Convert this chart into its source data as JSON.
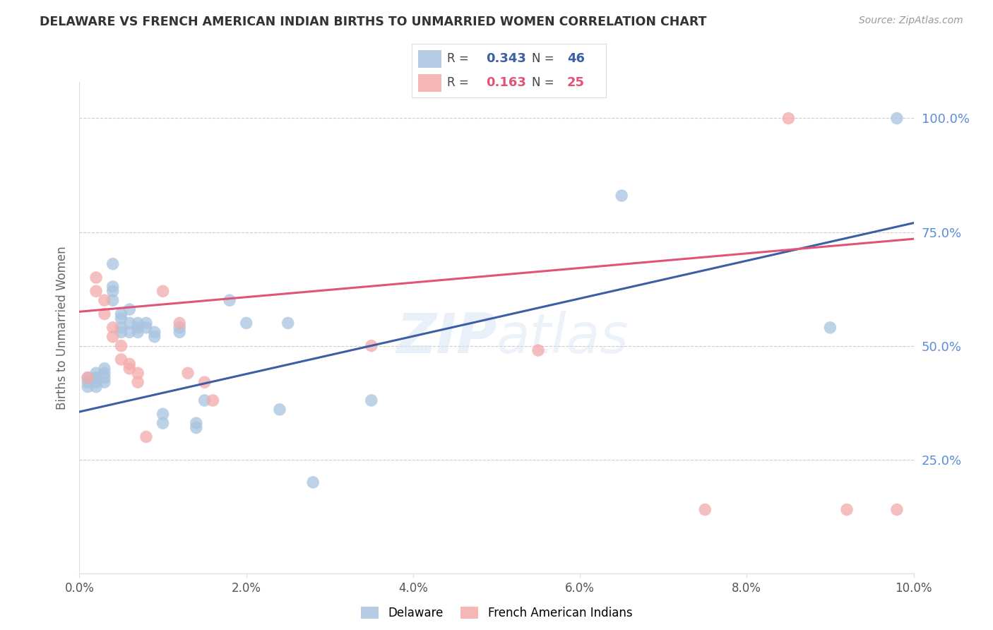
{
  "title": "DELAWARE VS FRENCH AMERICAN INDIAN BIRTHS TO UNMARRIED WOMEN CORRELATION CHART",
  "source": "Source: ZipAtlas.com",
  "ylabel": "Births to Unmarried Women",
  "watermark": "ZIPatlas",
  "legend_blue_r": "0.343",
  "legend_blue_n": "46",
  "legend_pink_r": "0.163",
  "legend_pink_n": "25",
  "legend_blue_label": "Delaware",
  "legend_pink_label": "French American Indians",
  "ytick_labels": [
    "100.0%",
    "75.0%",
    "50.0%",
    "25.0%"
  ],
  "ytick_values": [
    1.0,
    0.75,
    0.5,
    0.25
  ],
  "xmin": 0.0,
  "xmax": 0.1,
  "ymin": 0.0,
  "ymax": 1.08,
  "blue_scatter_x": [
    0.001,
    0.001,
    0.001,
    0.002,
    0.002,
    0.002,
    0.002,
    0.002,
    0.003,
    0.003,
    0.003,
    0.003,
    0.004,
    0.004,
    0.004,
    0.004,
    0.005,
    0.005,
    0.005,
    0.005,
    0.006,
    0.006,
    0.006,
    0.007,
    0.007,
    0.007,
    0.008,
    0.008,
    0.009,
    0.009,
    0.01,
    0.01,
    0.012,
    0.012,
    0.014,
    0.014,
    0.015,
    0.018,
    0.02,
    0.024,
    0.025,
    0.028,
    0.035,
    0.065,
    0.09,
    0.098
  ],
  "blue_scatter_y": [
    0.43,
    0.42,
    0.41,
    0.44,
    0.43,
    0.43,
    0.42,
    0.41,
    0.45,
    0.44,
    0.43,
    0.42,
    0.68,
    0.63,
    0.62,
    0.6,
    0.57,
    0.56,
    0.54,
    0.53,
    0.58,
    0.55,
    0.53,
    0.55,
    0.54,
    0.53,
    0.55,
    0.54,
    0.53,
    0.52,
    0.35,
    0.33,
    0.54,
    0.53,
    0.33,
    0.32,
    0.38,
    0.6,
    0.55,
    0.36,
    0.55,
    0.2,
    0.38,
    0.83,
    0.54,
    1.0
  ],
  "pink_scatter_x": [
    0.001,
    0.002,
    0.002,
    0.003,
    0.003,
    0.004,
    0.004,
    0.005,
    0.005,
    0.006,
    0.006,
    0.007,
    0.007,
    0.008,
    0.01,
    0.012,
    0.013,
    0.015,
    0.016,
    0.035,
    0.055,
    0.075,
    0.085,
    0.092,
    0.098
  ],
  "pink_scatter_y": [
    0.43,
    0.65,
    0.62,
    0.6,
    0.57,
    0.54,
    0.52,
    0.5,
    0.47,
    0.46,
    0.45,
    0.44,
    0.42,
    0.3,
    0.62,
    0.55,
    0.44,
    0.42,
    0.38,
    0.5,
    0.49,
    0.14,
    1.0,
    0.14,
    0.14
  ],
  "blue_line_x": [
    0.0,
    0.1
  ],
  "blue_line_y": [
    0.355,
    0.77
  ],
  "pink_line_x": [
    0.0,
    0.1
  ],
  "pink_line_y": [
    0.575,
    0.735
  ],
  "blue_color": "#A8C4E0",
  "pink_color": "#F4AAAA",
  "blue_line_color": "#3B5EA6",
  "pink_line_color": "#E05575",
  "grid_color": "#CCCCCC",
  "title_color": "#333333",
  "yaxis_label_color": "#5B8DD9",
  "background_color": "#FFFFFF"
}
